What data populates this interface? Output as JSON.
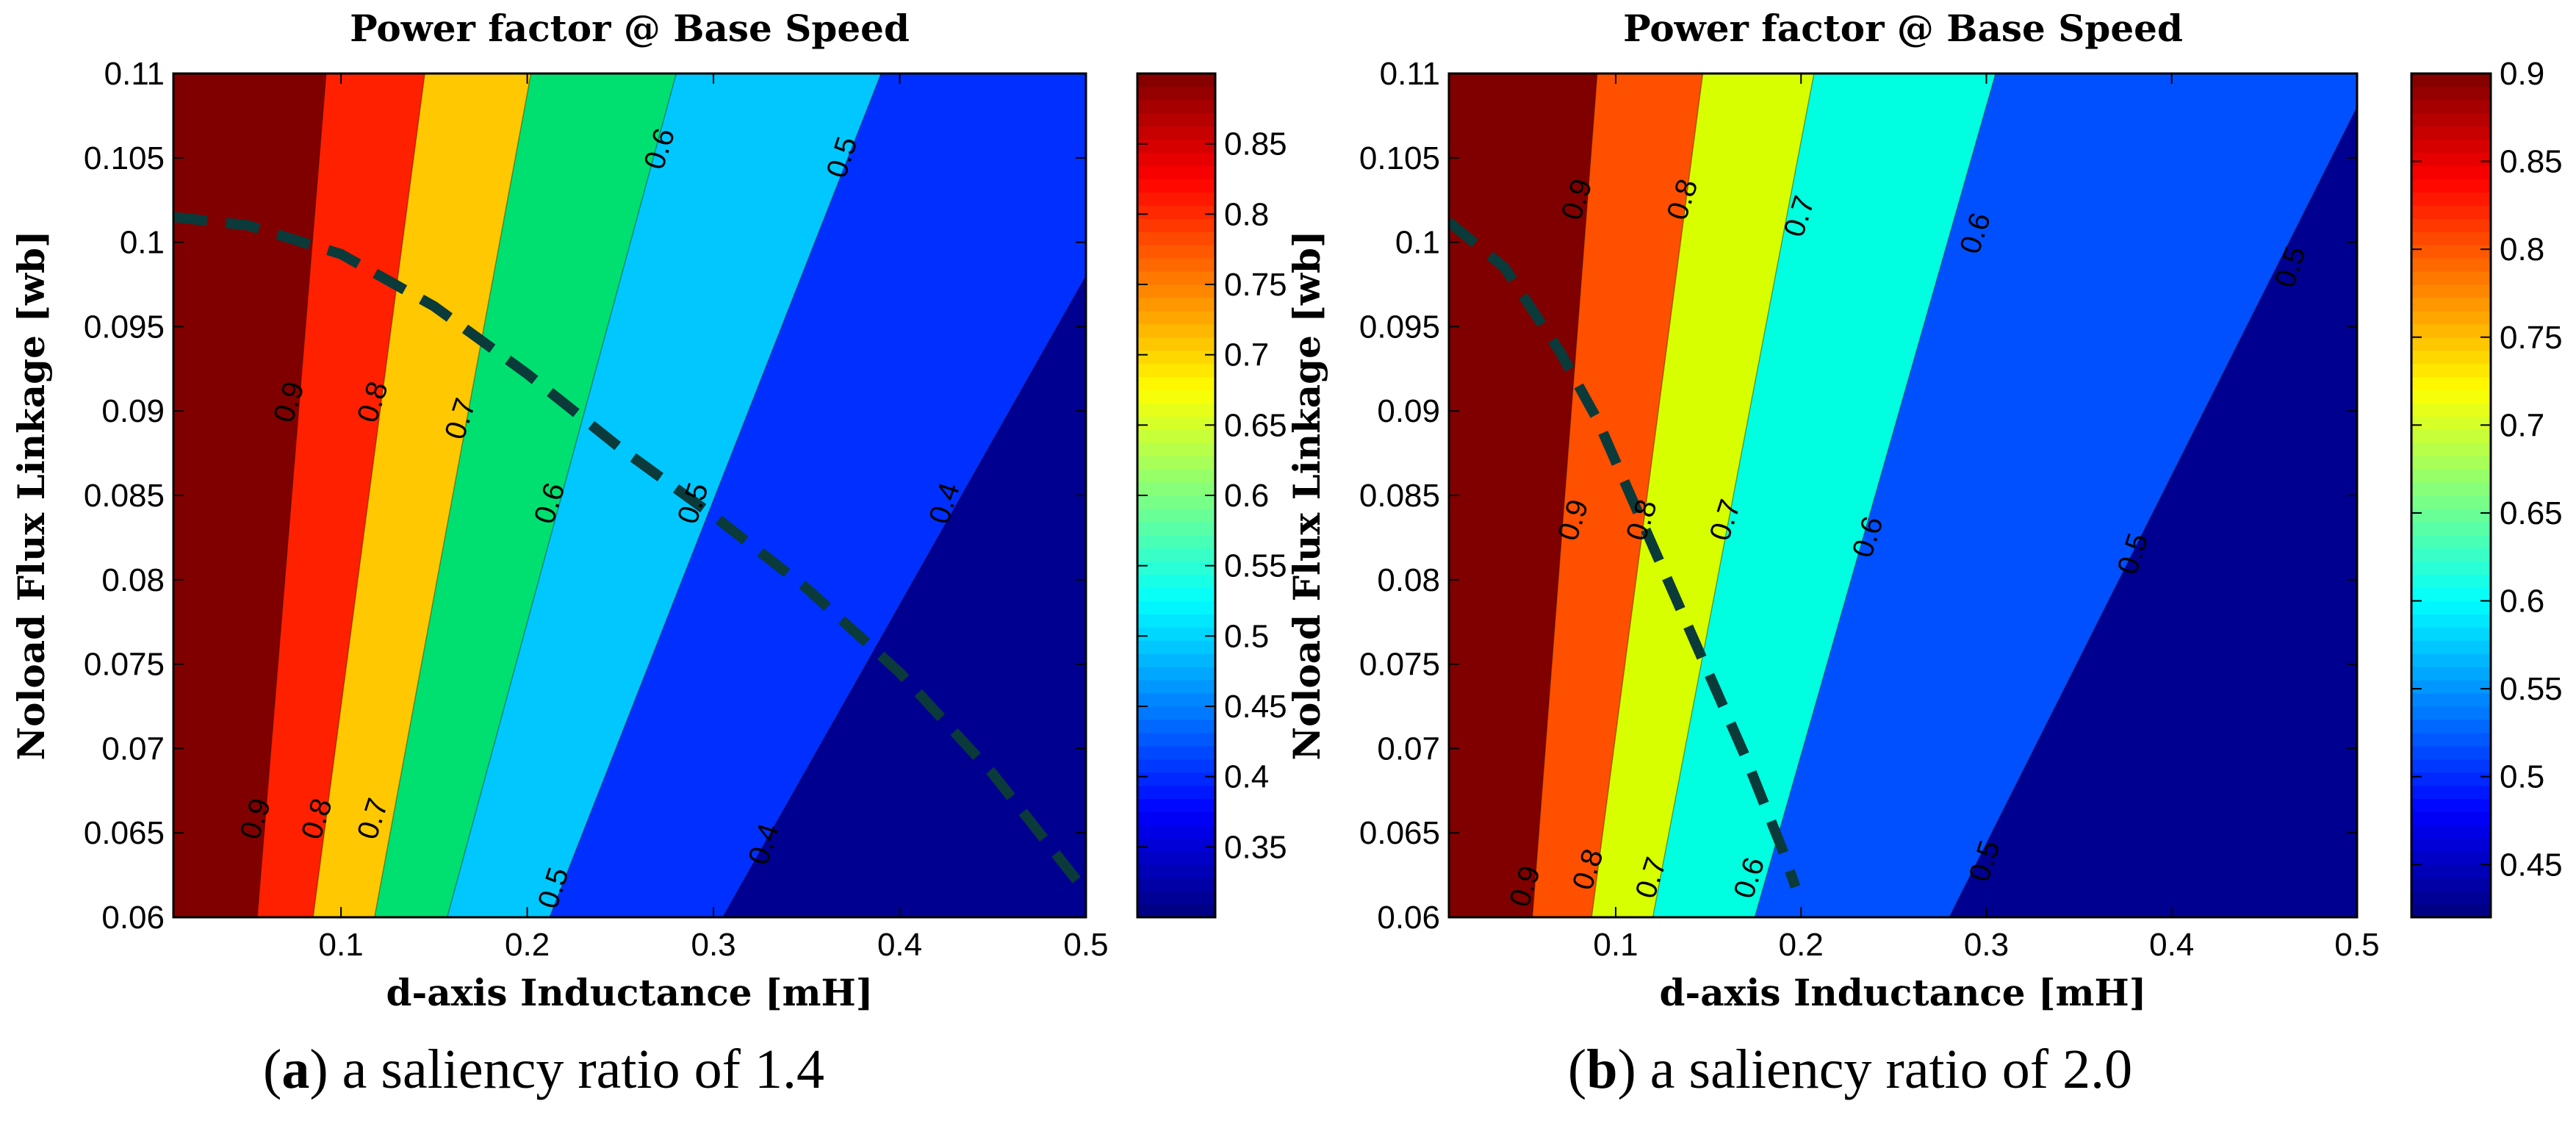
{
  "chart_data": [
    {
      "type": "contour",
      "panel_label": "a",
      "caption": "a saliency ratio of 1.4",
      "title": "Power factor @ Base Speed",
      "xlabel": "d-axis Inductance [mH]",
      "ylabel": "Noload Flux Linkage [wb]",
      "xlim": [
        0.01,
        0.5
      ],
      "ylim": [
        0.06,
        0.11
      ],
      "xticks": [
        0.1,
        0.2,
        0.3,
        0.4,
        0.5
      ],
      "yticks": [
        0.06,
        0.065,
        0.07,
        0.075,
        0.08,
        0.085,
        0.09,
        0.095,
        0.1,
        0.105,
        0.11
      ],
      "x_tick_labels": [
        "0.1",
        "0.2",
        "0.3",
        "0.4",
        "0.5"
      ],
      "y_tick_labels": [
        "0.06",
        "0.065",
        "0.07",
        "0.075",
        "0.08",
        "0.085",
        "0.09",
        "0.095",
        "0.1",
        "0.105",
        "0.11"
      ],
      "colorbar": {
        "range": [
          0.3,
          0.9
        ],
        "ticks": [
          0.35,
          0.4,
          0.45,
          0.5,
          0.55,
          0.6,
          0.65,
          0.7,
          0.75,
          0.8,
          0.85
        ],
        "tick_labels": [
          "0.35",
          "0.4",
          "0.45",
          "0.5",
          "0.55",
          "0.6",
          "0.65",
          "0.7",
          "0.75",
          "0.8",
          "0.85"
        ]
      },
      "regions": [
        {
          "color": "#800000"
        },
        {
          "color": "#ff2000"
        },
        {
          "color": "#ffc800"
        },
        {
          "color": "#00e070"
        },
        {
          "color": "#00c8ff"
        },
        {
          "color": "#0030ff"
        },
        {
          "color": "#000090"
        }
      ],
      "contours": [
        {
          "level": 0.9,
          "bottom_x": 0.055,
          "top_x": 0.092
        },
        {
          "level": 0.8,
          "bottom_x": 0.085,
          "top_x": 0.145
        },
        {
          "level": 0.7,
          "bottom_x": 0.118,
          "top_x": 0.202
        },
        {
          "level": 0.6,
          "bottom_x": 0.157,
          "top_x": 0.28
        },
        {
          "level": 0.5,
          "bottom_x": 0.212,
          "top_x": 0.39
        },
        {
          "level": 0.4,
          "bottom_x": 0.305,
          "top_x": 0.5,
          "right_y": 0.098
        }
      ],
      "contour_labels": [
        {
          "text": "0.9",
          "x": 0.073,
          "y": 0.0905
        },
        {
          "text": "0.8",
          "x": 0.118,
          "y": 0.0905
        },
        {
          "text": "0.7",
          "x": 0.165,
          "y": 0.0895
        },
        {
          "text": "0.6",
          "x": 0.213,
          "y": 0.0845
        },
        {
          "text": "0.6",
          "x": 0.272,
          "y": 0.1055
        },
        {
          "text": "0.5",
          "x": 0.37,
          "y": 0.105
        },
        {
          "text": "0.5",
          "x": 0.29,
          "y": 0.0845
        },
        {
          "text": "0.4",
          "x": 0.425,
          "y": 0.0845
        },
        {
          "text": "0.9",
          "x": 0.055,
          "y": 0.0658
        },
        {
          "text": "0.8",
          "x": 0.088,
          "y": 0.0658
        },
        {
          "text": "0.7",
          "x": 0.118,
          "y": 0.0658
        },
        {
          "text": "0.5",
          "x": 0.215,
          "y": 0.0617
        },
        {
          "text": "0.4",
          "x": 0.328,
          "y": 0.0643
        }
      ],
      "dashed_curve": {
        "x": [
          0.01,
          0.05,
          0.1,
          0.15,
          0.2,
          0.25,
          0.3,
          0.35,
          0.4,
          0.45,
          0.5
        ],
        "y": [
          0.1015,
          0.101,
          0.0993,
          0.0962,
          0.0922,
          0.0878,
          0.0838,
          0.0795,
          0.0745,
          0.0685,
          0.0615
        ]
      }
    },
    {
      "type": "contour",
      "panel_label": "b",
      "caption": "a saliency ratio of 2.0",
      "title": "Power factor @ Base Speed",
      "xlabel": "d-axis Inductance [mH]",
      "ylabel": "Noload Flux Linkage [wb]",
      "xlim": [
        0.01,
        0.5
      ],
      "ylim": [
        0.06,
        0.11
      ],
      "xticks": [
        0.1,
        0.2,
        0.3,
        0.4,
        0.5
      ],
      "yticks": [
        0.06,
        0.065,
        0.07,
        0.075,
        0.08,
        0.085,
        0.09,
        0.095,
        0.1,
        0.105,
        0.11
      ],
      "x_tick_labels": [
        "0.1",
        "0.2",
        "0.3",
        "0.4",
        "0.5"
      ],
      "y_tick_labels": [
        "0.06",
        "0.065",
        "0.07",
        "0.075",
        "0.08",
        "0.085",
        "0.09",
        "0.095",
        "0.1",
        "0.105",
        "0.11"
      ],
      "colorbar": {
        "range": [
          0.42,
          0.9
        ],
        "ticks": [
          0.45,
          0.5,
          0.55,
          0.6,
          0.65,
          0.7,
          0.75,
          0.8,
          0.85,
          0.9
        ],
        "tick_labels": [
          "0.45",
          "0.5",
          "0.55",
          "0.6",
          "0.65",
          "0.7",
          "0.75",
          "0.8",
          "0.85",
          "0.9"
        ]
      },
      "regions": [
        {
          "color": "#800000"
        },
        {
          "color": "#ff5000"
        },
        {
          "color": "#d8ff00"
        },
        {
          "color": "#00ffe0"
        },
        {
          "color": "#0050ff"
        },
        {
          "color": "#000090"
        }
      ],
      "contours": [
        {
          "level": 0.9,
          "bottom_x": 0.055,
          "top_x": 0.09
        },
        {
          "level": 0.8,
          "bottom_x": 0.087,
          "top_x": 0.147
        },
        {
          "level": 0.7,
          "bottom_x": 0.12,
          "top_x": 0.207
        },
        {
          "level": 0.6,
          "bottom_x": 0.175,
          "top_x": 0.305
        },
        {
          "level": 0.5,
          "bottom_x": 0.28,
          "top_x": 0.5,
          "right_y": 0.108
        }
      ],
      "contour_labels": [
        {
          "text": "0.9",
          "x": 0.08,
          "y": 0.1025
        },
        {
          "text": "0.8",
          "x": 0.137,
          "y": 0.1025
        },
        {
          "text": "0.7",
          "x": 0.2,
          "y": 0.1015
        },
        {
          "text": "0.6",
          "x": 0.295,
          "y": 0.1005
        },
        {
          "text": "0.5",
          "x": 0.465,
          "y": 0.0985
        },
        {
          "text": "0.9",
          "x": 0.078,
          "y": 0.0835
        },
        {
          "text": "0.8",
          "x": 0.115,
          "y": 0.0835
        },
        {
          "text": "0.7",
          "x": 0.16,
          "y": 0.0835
        },
        {
          "text": "0.6",
          "x": 0.237,
          "y": 0.0825
        },
        {
          "text": "0.5",
          "x": 0.38,
          "y": 0.0815
        },
        {
          "text": "0.9",
          "x": 0.052,
          "y": 0.0618
        },
        {
          "text": "0.8",
          "x": 0.086,
          "y": 0.0628
        },
        {
          "text": "0.7",
          "x": 0.12,
          "y": 0.0623
        },
        {
          "text": "0.6",
          "x": 0.173,
          "y": 0.0623
        },
        {
          "text": "0.5",
          "x": 0.3,
          "y": 0.0633
        }
      ],
      "dashed_curve": {
        "x": [
          0.01,
          0.04,
          0.07,
          0.09,
          0.11,
          0.13,
          0.15,
          0.17,
          0.19,
          0.197
        ],
        "y": [
          0.1012,
          0.0985,
          0.0935,
          0.0895,
          0.0845,
          0.0795,
          0.0745,
          0.0695,
          0.064,
          0.0618
        ]
      }
    }
  ]
}
